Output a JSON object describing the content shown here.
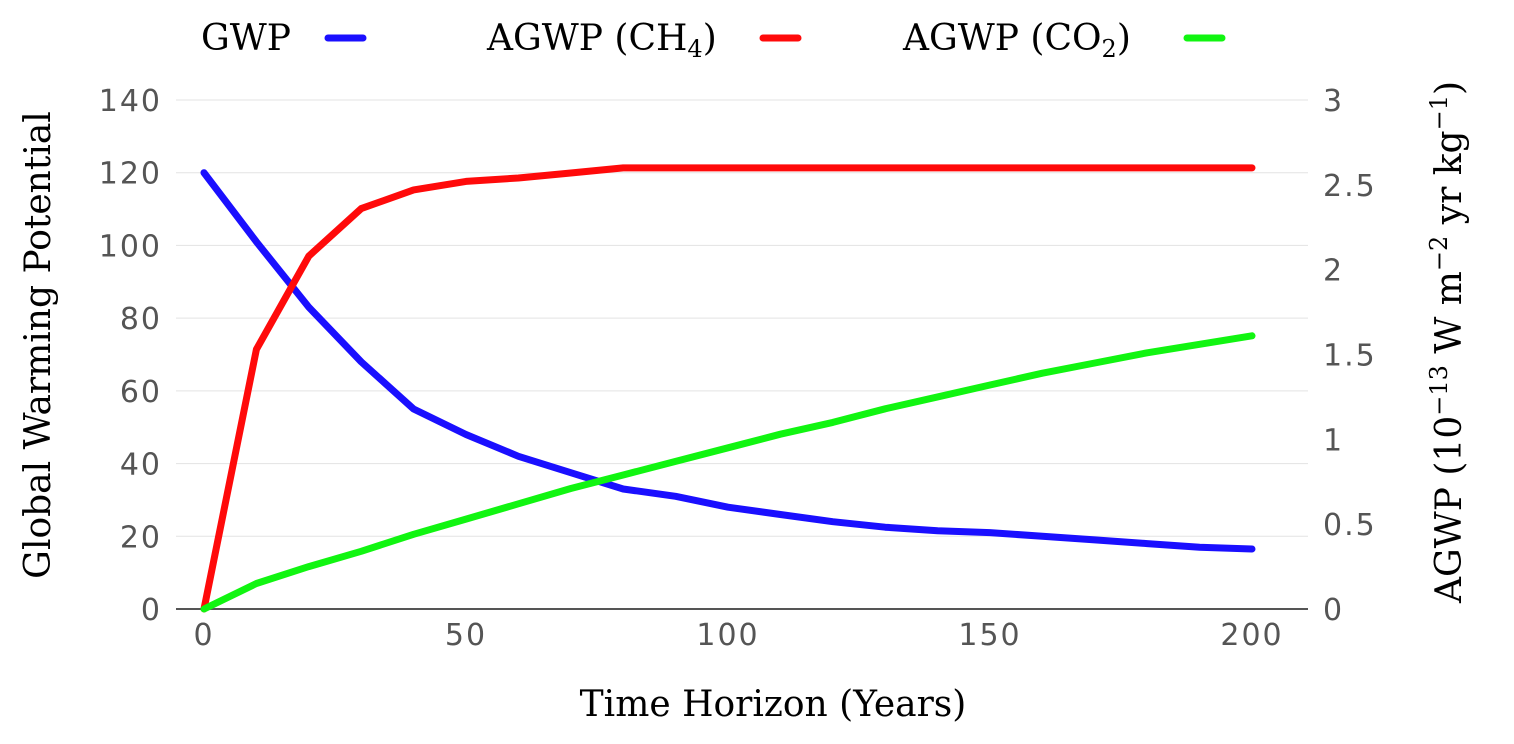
{
  "chart_data": {
    "type": "line",
    "title": "",
    "xlabel": "Time Horizon (Years)",
    "ylabel_left": "Global Warming Potential",
    "ylabel_right": {
      "prefix": "AGWP (10",
      "exp1": "−13",
      "middle": " W m",
      "exp2": "−2",
      "middle2": " yr kg",
      "exp3": "−1",
      "suffix": ")"
    },
    "xlim": [
      0,
      200
    ],
    "ylim_left": [
      0,
      140
    ],
    "ylim_right": [
      0,
      3
    ],
    "x_ticks": [
      "0",
      "50",
      "100",
      "150",
      "200"
    ],
    "y_left_ticks": [
      "0",
      "20",
      "40",
      "60",
      "80",
      "100",
      "120",
      "140"
    ],
    "y_right_ticks": [
      "0",
      "0.5",
      "1",
      "1.5",
      "2",
      "2.5",
      "3"
    ],
    "grid": true,
    "legend_position": "top",
    "legend": [
      {
        "key": "gwp",
        "label": "GWP",
        "sub": "",
        "after": "",
        "color": "#1a0fff"
      },
      {
        "key": "ch4",
        "label": "AGWP (CH",
        "sub": "4",
        "after": ")",
        "color": "#ff0a0a"
      },
      {
        "key": "co2",
        "label": "AGWP (CO",
        "sub": "2",
        "after": ")",
        "color": "#11f511"
      }
    ],
    "series": [
      {
        "key": "gwp",
        "name": "GWP",
        "axis": "left",
        "color": "#1a0fff",
        "x": [
          0,
          10,
          20,
          30,
          40,
          50,
          60,
          70,
          80,
          90,
          100,
          110,
          120,
          130,
          140,
          150,
          160,
          170,
          180,
          190,
          200
        ],
        "y": [
          120,
          101,
          83,
          68,
          55,
          48,
          42,
          37.5,
          33,
          31,
          28,
          26,
          24,
          22.5,
          21.5,
          21,
          20,
          19,
          18,
          17,
          16.5
        ]
      },
      {
        "key": "ch4",
        "name": "AGWP (CH4)",
        "axis": "right",
        "color": "#ff0a0a",
        "x": [
          0,
          10,
          20,
          30,
          40,
          50,
          60,
          70,
          80,
          90,
          100,
          110,
          120,
          130,
          140,
          150,
          160,
          170,
          180,
          190,
          200
        ],
        "y": [
          0,
          1.53,
          2.08,
          2.36,
          2.47,
          2.52,
          2.54,
          2.57,
          2.6,
          2.6,
          2.6,
          2.6,
          2.6,
          2.6,
          2.6,
          2.6,
          2.6,
          2.6,
          2.6,
          2.6,
          2.6
        ]
      },
      {
        "key": "co2",
        "name": "AGWP (CO2)",
        "axis": "right",
        "color": "#11f511",
        "x": [
          0,
          10,
          20,
          30,
          40,
          50,
          60,
          70,
          80,
          90,
          100,
          110,
          120,
          130,
          140,
          150,
          160,
          170,
          180,
          190,
          200
        ],
        "y": [
          0,
          0.15,
          0.25,
          0.34,
          0.44,
          0.53,
          0.62,
          0.71,
          0.79,
          0.87,
          0.95,
          1.03,
          1.1,
          1.18,
          1.25,
          1.32,
          1.39,
          1.45,
          1.51,
          1.56,
          1.61
        ]
      }
    ]
  }
}
